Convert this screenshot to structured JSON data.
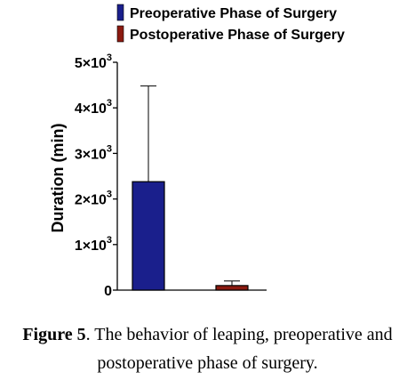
{
  "chart_data": {
    "type": "bar",
    "categories": [
      "Preoperative Phase of Surgery",
      "Postoperative Phase of Surgery"
    ],
    "values": [
      2380,
      100
    ],
    "error_bars": [
      2100,
      100
    ],
    "colors": [
      "#1a1f8c",
      "#8b1a10"
    ],
    "ylabel": "Duration (min)",
    "xlabel": "",
    "ylim": [
      0,
      5000
    ],
    "yticks": [
      {
        "value": 0,
        "base": "0",
        "exp": ""
      },
      {
        "value": 1000,
        "base": "1×10",
        "exp": "3"
      },
      {
        "value": 2000,
        "base": "2×10",
        "exp": "3"
      },
      {
        "value": 3000,
        "base": "3×10",
        "exp": "3"
      },
      {
        "value": 4000,
        "base": "4×10",
        "exp": "3"
      },
      {
        "value": 5000,
        "base": "5×10",
        "exp": "3"
      }
    ],
    "legend": [
      {
        "label": "Preoperative Phase of Surgery",
        "color": "#1a1f8c"
      },
      {
        "label": "Postoperative Phase of Surgery",
        "color": "#8b1a10"
      }
    ],
    "legend_position": "top",
    "grid": false
  },
  "caption": {
    "label": "Figure 5",
    "text_line1": ". The behavior of leaping, preoperative and",
    "text_line2": "postoperative phase of surgery."
  }
}
